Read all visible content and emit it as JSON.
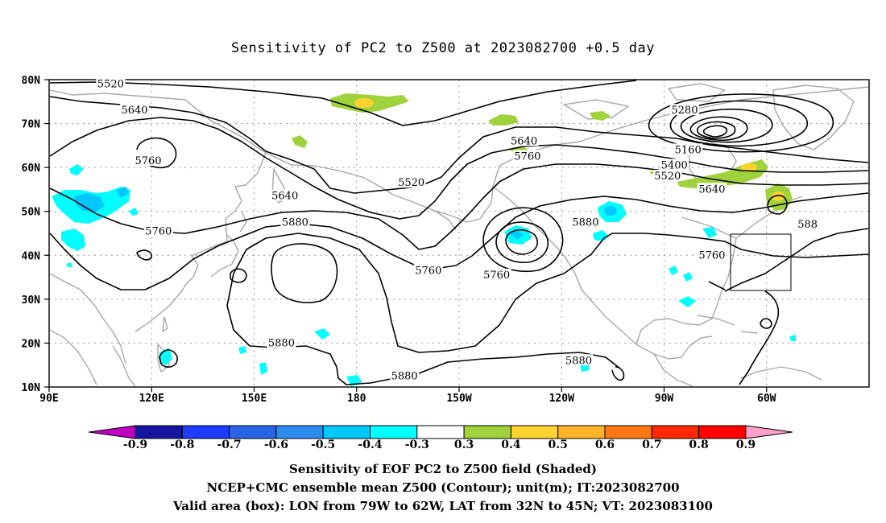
{
  "title": "Sensitivity of PC2 to Z500 at 2023082700 +0.5 day",
  "map": {
    "lat_labels": [
      "80N",
      "70N",
      "60N",
      "50N",
      "40N",
      "30N",
      "20N",
      "10N"
    ],
    "lon_labels": [
      "90E",
      "120E",
      "150E",
      "180",
      "150W",
      "120W",
      "90W",
      "60W"
    ],
    "valid_box": {
      "lon_from": "79W",
      "lon_to": "62W",
      "lat_from": "32N",
      "lat_to": "45N"
    }
  },
  "contours": {
    "color": "#000000",
    "labels": [
      {
        "text": "5520",
        "lon": 108,
        "lat": 79
      },
      {
        "text": "5640",
        "lon": 115,
        "lat": 73
      },
      {
        "text": "5760",
        "lon": 119,
        "lat": 61.5
      },
      {
        "text": "5640",
        "lon": 159,
        "lat": 53.5
      },
      {
        "text": "5520",
        "lon": 196,
        "lat": 56.5
      },
      {
        "text": "5640",
        "lon": 229,
        "lat": 66
      },
      {
        "text": "5760",
        "lon": 230,
        "lat": 62.5
      },
      {
        "text": "5760",
        "lon": 122,
        "lat": 45.5
      },
      {
        "text": "5880",
        "lon": 162,
        "lat": 47.5
      },
      {
        "text": "5760",
        "lon": 201,
        "lat": 36.5
      },
      {
        "text": "5760",
        "lon": 221,
        "lat": 35.5
      },
      {
        "text": "5880",
        "lon": 247,
        "lat": 47.5
      },
      {
        "text": "5880",
        "lon": 158,
        "lat": 20
      },
      {
        "text": "5880",
        "lon": 194,
        "lat": 12.5
      },
      {
        "text": "5880",
        "lon": 245,
        "lat": 16
      },
      {
        "text": "5280",
        "lon": 276,
        "lat": 73
      },
      {
        "text": "5160",
        "lon": 277,
        "lat": 64
      },
      {
        "text": "5400",
        "lon": 273,
        "lat": 60.5
      },
      {
        "text": "5520",
        "lon": 271,
        "lat": 58
      },
      {
        "text": "5640",
        "lon": 284,
        "lat": 55
      },
      {
        "text": "5760",
        "lon": 284,
        "lat": 40
      },
      {
        "text": "588",
        "lon": 312,
        "lat": 47
      }
    ]
  },
  "colorbar": {
    "labels": [
      "-0.9",
      "-0.8",
      "-0.7",
      "-0.6",
      "-0.5",
      "-0.4",
      "-0.3",
      "0.3",
      "0.4",
      "0.5",
      "0.6",
      "0.7",
      "0.8",
      "0.9"
    ],
    "colors": [
      "#c000c0",
      "#1414a0",
      "#1e3cff",
      "#2864e6",
      "#2c8cf0",
      "#00c8ff",
      "#00ffff",
      "#ffffff",
      "#a0d23c",
      "#ffd232",
      "#ffb428",
      "#ff7814",
      "#ff2800",
      "#ff0000",
      "#ffa0c8"
    ]
  },
  "footer": {
    "line1": "Sensitivity of EOF PC2 to Z500 field (Shaded)",
    "line2": "NCEP+CMC ensemble mean Z500 (Contour); unit(m); IT:2023082700",
    "line3": "Valid area (box): LON from 79W to 62W, LAT from 32N to 45N; VT: 2023083100"
  }
}
